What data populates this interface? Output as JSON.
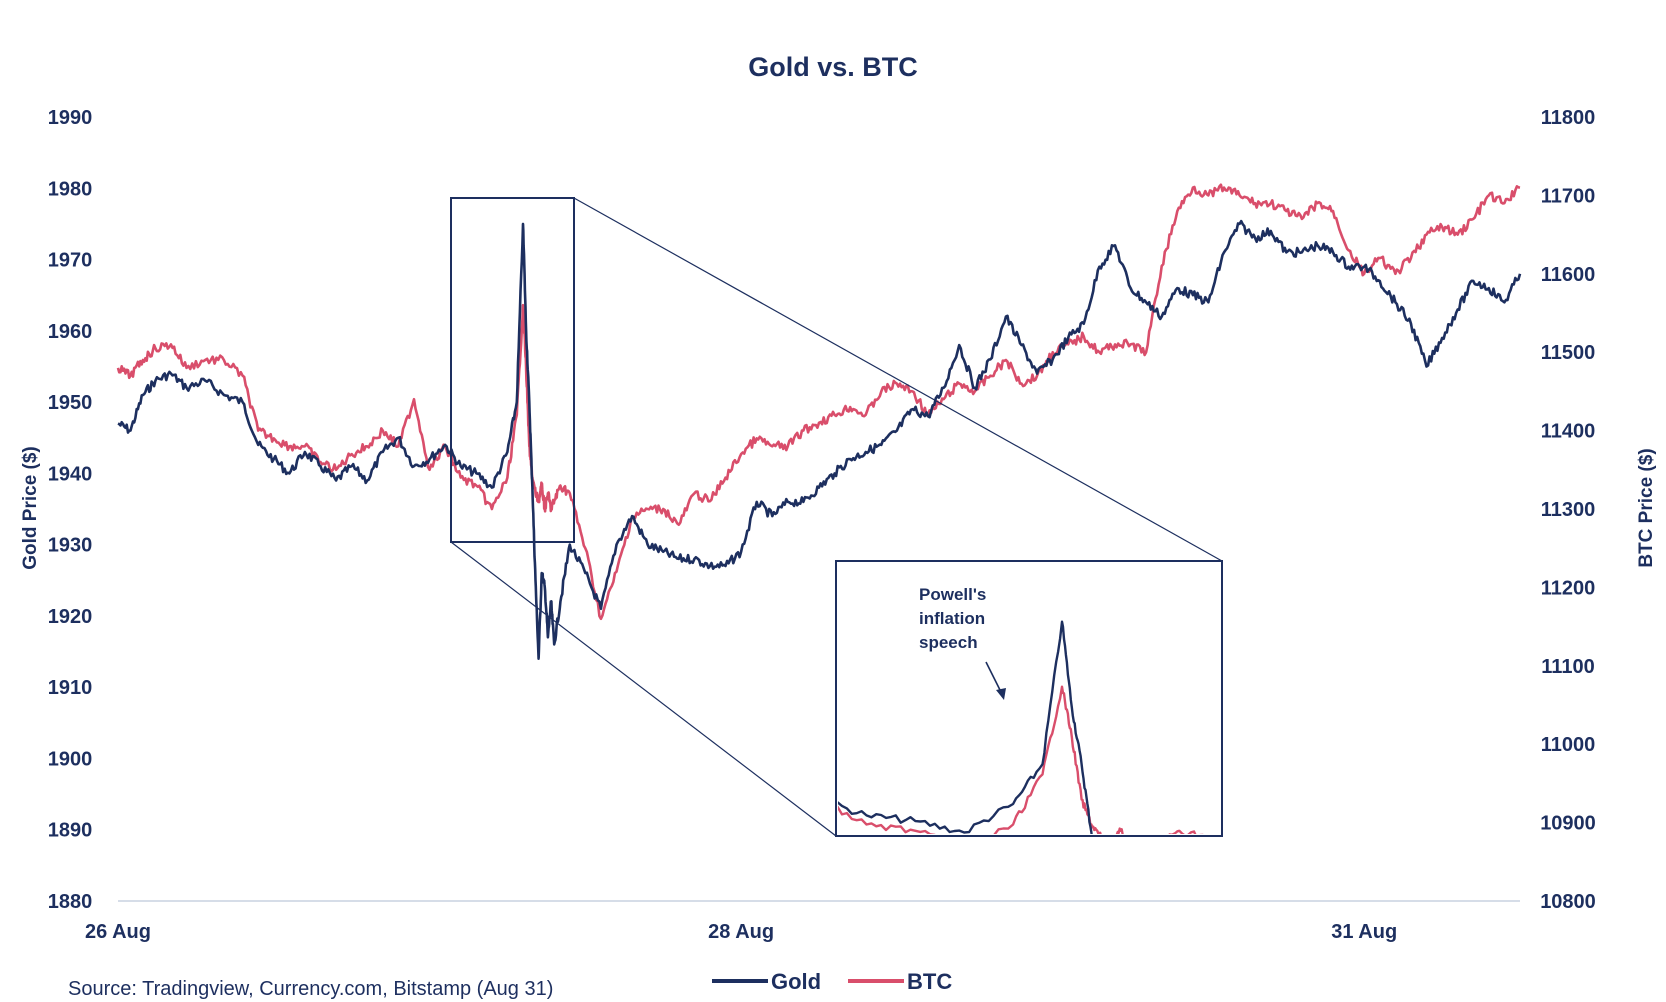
{
  "chart_data": {
    "type": "line",
    "title": "Gold vs. BTC",
    "ylabel_left": "Gold Price ($)",
    "ylabel_right": "BTC Price ($)",
    "y_left_range": [
      1880,
      1990
    ],
    "y_right_range": [
      10800,
      11800
    ],
    "y_left_ticks": [
      "1990",
      "1980",
      "1970",
      "1960",
      "1950",
      "1940",
      "1930",
      "1920",
      "1910",
      "1900",
      "1890",
      "1880"
    ],
    "y_right_ticks": [
      "11800",
      "11700",
      "11600",
      "11500",
      "11400",
      "11300",
      "11200",
      "11100",
      "11000",
      "10900",
      "10800"
    ],
    "x_ticks": [
      {
        "label": "26 Aug",
        "t": 0
      },
      {
        "label": "28 Aug",
        "t": 2.0
      },
      {
        "label": "31 Aug",
        "t": 4.0
      }
    ],
    "x_range": [
      0,
      4.5
    ],
    "grid": false,
    "legend": "bottom-center",
    "source": "Source: Tradingview, Currency.com, Bitstamp (Aug 31)",
    "annotation": {
      "lines": [
        "Powell's",
        "inflation",
        "speech"
      ]
    },
    "zoom_box_x_range": [
      1.07,
      1.46
    ],
    "series": [
      {
        "name": "Gold",
        "axis": "left",
        "color": "#1d2f5f",
        "x": [
          0,
          0.04,
          0.08,
          0.12,
          0.17,
          0.22,
          0.28,
          0.34,
          0.4,
          0.45,
          0.5,
          0.55,
          0.6,
          0.65,
          0.7,
          0.75,
          0.8,
          0.85,
          0.9,
          0.95,
          1.0,
          1.05,
          1.1,
          1.15,
          1.2,
          1.25,
          1.28,
          1.3,
          1.31,
          1.32,
          1.33,
          1.34,
          1.35,
          1.36,
          1.37,
          1.38,
          1.39,
          1.4,
          1.42,
          1.45,
          1.5,
          1.55,
          1.6,
          1.65,
          1.7,
          1.75,
          1.8,
          1.85,
          1.9,
          1.95,
          2.0,
          2.05,
          2.1,
          2.15,
          2.2,
          2.25,
          2.3,
          2.35,
          2.4,
          2.45,
          2.5,
          2.55,
          2.6,
          2.65,
          2.7,
          2.75,
          2.8,
          2.85,
          2.9,
          2.95,
          3.0,
          3.05,
          3.1,
          3.15,
          3.2,
          3.25,
          3.3,
          3.35,
          3.4,
          3.45,
          3.5,
          3.55,
          3.6,
          3.65,
          3.7,
          3.75,
          3.8,
          3.85,
          3.9,
          3.95,
          4.0,
          4.05,
          4.1,
          4.15,
          4.2,
          4.25,
          4.3,
          4.35,
          4.4,
          4.45,
          4.5
        ],
        "values": [
          1947,
          1946,
          1951,
          1953,
          1954,
          1952,
          1953,
          1951,
          1950,
          1944,
          1942,
          1940,
          1943,
          1941,
          1939,
          1941,
          1939,
          1943,
          1945,
          1941,
          1942,
          1944,
          1941,
          1940,
          1938,
          1943,
          1950,
          1975,
          1960,
          1950,
          1938,
          1925,
          1914,
          1926,
          1924,
          1917,
          1922,
          1916,
          1922,
          1930,
          1926,
          1921,
          1930,
          1934,
          1930,
          1929,
          1928,
          1928,
          1927,
          1927,
          1929,
          1936,
          1934,
          1936,
          1936,
          1938,
          1940,
          1942,
          1943,
          1944,
          1946,
          1949,
          1948,
          1952,
          1958,
          1952,
          1956,
          1962,
          1958,
          1954,
          1956,
          1959,
          1961,
          1969,
          1972,
          1966,
          1964,
          1962,
          1966,
          1965,
          1964,
          1971,
          1975,
          1973,
          1974,
          1971,
          1971,
          1972,
          1971,
          1969,
          1969,
          1967,
          1964,
          1961,
          1955,
          1959,
          1963,
          1967,
          1966,
          1964,
          1968
        ]
      },
      {
        "name": "BTC",
        "axis": "right",
        "color": "#d94e6b",
        "x": [
          0,
          0.04,
          0.08,
          0.12,
          0.17,
          0.22,
          0.28,
          0.34,
          0.4,
          0.45,
          0.5,
          0.55,
          0.6,
          0.65,
          0.7,
          0.75,
          0.8,
          0.85,
          0.9,
          0.95,
          1.0,
          1.05,
          1.1,
          1.15,
          1.2,
          1.25,
          1.28,
          1.3,
          1.31,
          1.32,
          1.33,
          1.34,
          1.35,
          1.36,
          1.37,
          1.38,
          1.39,
          1.4,
          1.42,
          1.45,
          1.5,
          1.55,
          1.6,
          1.65,
          1.7,
          1.75,
          1.8,
          1.85,
          1.9,
          1.95,
          2.0,
          2.05,
          2.1,
          2.15,
          2.2,
          2.25,
          2.3,
          2.35,
          2.4,
          2.45,
          2.5,
          2.55,
          2.6,
          2.65,
          2.7,
          2.75,
          2.8,
          2.85,
          2.9,
          2.95,
          3.0,
          3.05,
          3.1,
          3.15,
          3.2,
          3.25,
          3.3,
          3.35,
          3.4,
          3.45,
          3.5,
          3.55,
          3.6,
          3.65,
          3.7,
          3.75,
          3.8,
          3.85,
          3.9,
          3.95,
          4.0,
          4.05,
          4.1,
          4.15,
          4.2,
          4.25,
          4.3,
          4.35,
          4.4,
          4.45,
          4.5
        ],
        "values": [
          11480,
          11470,
          11490,
          11505,
          11510,
          11480,
          11490,
          11490,
          11470,
          11400,
          11390,
          11380,
          11380,
          11360,
          11350,
          11370,
          11380,
          11400,
          11380,
          11440,
          11350,
          11380,
          11340,
          11330,
          11300,
          11340,
          11420,
          11560,
          11480,
          11380,
          11340,
          11320,
          11310,
          11330,
          11300,
          11320,
          11300,
          11310,
          11330,
          11320,
          11250,
          11160,
          11220,
          11290,
          11300,
          11300,
          11280,
          11320,
          11310,
          11340,
          11370,
          11390,
          11380,
          11380,
          11400,
          11410,
          11420,
          11430,
          11420,
          11450,
          11460,
          11450,
          11420,
          11440,
          11460,
          11450,
          11470,
          11490,
          11460,
          11470,
          11500,
          11510,
          11520,
          11500,
          11510,
          11510,
          11500,
          11610,
          11680,
          11710,
          11700,
          11710,
          11700,
          11690,
          11690,
          11680,
          11670,
          11690,
          11680,
          11630,
          11600,
          11620,
          11600,
          11620,
          11650,
          11660,
          11650,
          11670,
          11700,
          11690,
          11710
        ]
      }
    ]
  }
}
